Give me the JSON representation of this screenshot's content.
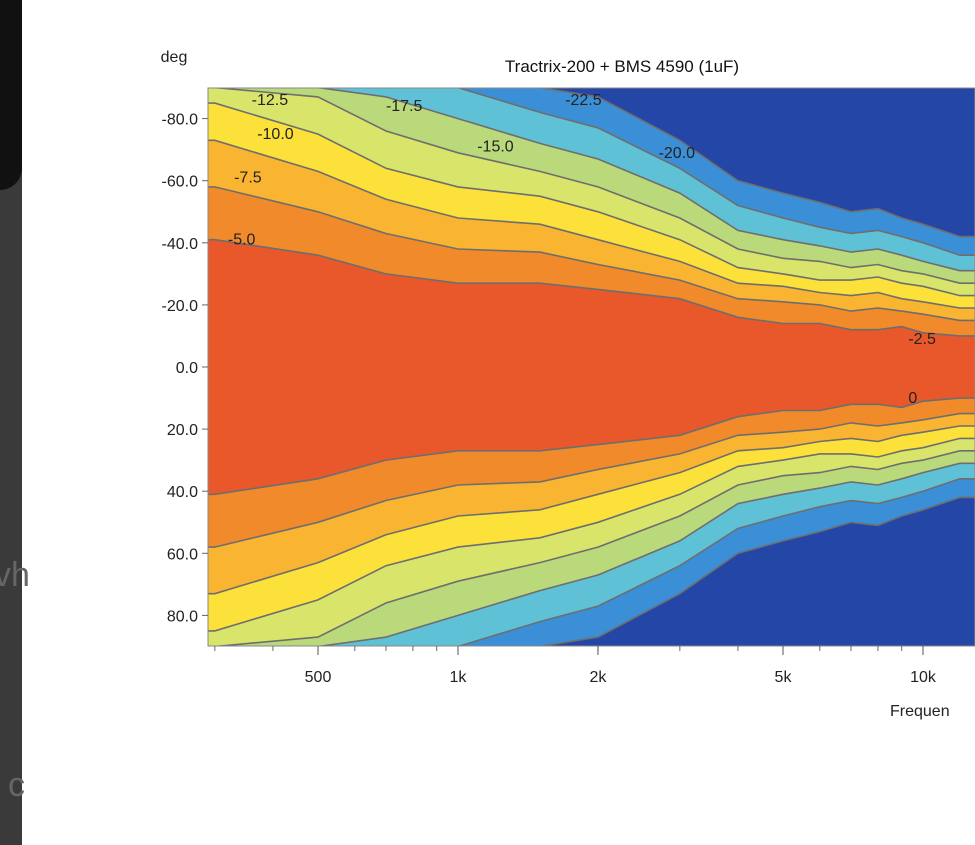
{
  "page": {
    "fragment_1": "vh",
    "fragment_2": "c"
  },
  "chart_data": {
    "type": "heatmap",
    "title": "Tractrix-200 + BMS 4590 (1uF)",
    "ylabel": "deg",
    "xlabel": "Frequen",
    "x_scale": "log",
    "xlim": [
      290,
      13000
    ],
    "ylim": [
      -90,
      90
    ],
    "y_axis_reversed": true,
    "y_ticks": [
      "-80.0",
      "-60.0",
      "-40.0",
      "-20.0",
      "0.0",
      "20.0",
      "40.0",
      "60.0",
      "80.0"
    ],
    "y_tick_values": [
      -80,
      -60,
      -40,
      -20,
      0,
      20,
      40,
      60,
      80
    ],
    "x_ticks": [
      "500",
      "1k",
      "2k",
      "5k",
      "10k"
    ],
    "x_tick_values": [
      500,
      1000,
      2000,
      5000,
      10000
    ],
    "contour_levels": [
      -2.5,
      -5.0,
      -7.5,
      -10.0,
      -12.5,
      -15.0,
      -17.5,
      -20.0,
      -22.5
    ],
    "contour_half_angles": {
      "freq_hz": [
        300,
        500,
        700,
        1000,
        1500,
        2000,
        3000,
        4000,
        5000,
        6000,
        7000,
        8000,
        9000,
        10000,
        12000
      ],
      "-5.0": [
        41,
        36,
        30,
        27,
        27,
        25,
        22,
        16,
        14,
        14,
        12,
        12,
        13,
        11,
        10
      ],
      "-7.5": [
        58,
        50,
        43,
        38,
        37,
        33,
        28,
        22,
        21,
        20,
        18,
        19,
        18,
        17,
        15
      ],
      "-10.0": [
        73,
        63,
        54,
        48,
        46,
        41,
        34,
        27,
        26,
        24,
        23,
        24,
        22,
        21,
        19
      ],
      "-12.5": [
        85,
        75,
        64,
        58,
        55,
        50,
        41,
        32,
        30,
        28,
        28,
        29,
        27,
        26,
        23
      ],
      "-15.0": [
        90,
        87,
        76,
        69,
        63,
        58,
        48,
        38,
        35,
        34,
        32,
        33,
        31,
        30,
        27
      ],
      "-17.5": [
        90,
        90,
        87,
        80,
        72,
        67,
        56,
        44,
        41,
        39,
        37,
        38,
        36,
        34,
        31
      ],
      "-20.0": [
        90,
        90,
        90,
        90,
        82,
        77,
        64,
        52,
        48,
        45,
        43,
        44,
        42,
        40,
        36
      ],
      "-22.5": [
        90,
        90,
        90,
        90,
        90,
        87,
        73,
        60,
        56,
        53,
        50,
        51,
        48,
        46,
        42
      ]
    },
    "contour_labels": [
      {
        "text": "-12.5",
        "freq": 360,
        "deg": -86
      },
      {
        "text": "-10.0",
        "freq": 370,
        "deg": -75
      },
      {
        "text": "-7.5",
        "freq": 330,
        "deg": -61
      },
      {
        "text": "-5.0",
        "freq": 320,
        "deg": -41
      },
      {
        "text": "-17.5",
        "freq": 700,
        "deg": -84
      },
      {
        "text": "-15.0",
        "freq": 1100,
        "deg": -71
      },
      {
        "text": "-22.5",
        "freq": 1700,
        "deg": -86
      },
      {
        "text": "-20.0",
        "freq": 2700,
        "deg": -69
      },
      {
        "text": "-2.5",
        "freq": 9300,
        "deg": -9
      },
      {
        "text": "0",
        "freq": 9300,
        "deg": 10
      }
    ],
    "colors": {
      "max": "#e8582a",
      "orange": "#f08a2a",
      "yellow": "#fbe13a",
      "green": "#b9d97a",
      "cyan": "#5fc1d6",
      "lightblue": "#3b8fd6",
      "floor": "#2446a6",
      "contour": "#6e6e6e"
    }
  }
}
